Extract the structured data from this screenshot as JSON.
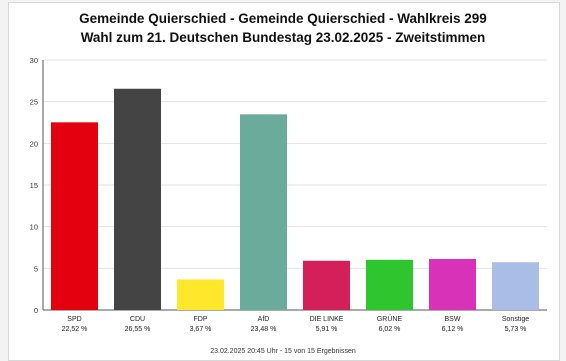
{
  "chart_data": {
    "type": "bar",
    "title": "Gemeinde Quierschied - Gemeinde Quierschied - Wahlkreis 299",
    "subtitle": "Wahl zum 21. Deutschen Bundestag 23.02.2025  - Zweitstimmen",
    "ylim": [
      0,
      30
    ],
    "yticks": [
      0,
      5,
      10,
      15,
      20,
      25,
      30
    ],
    "grid": true,
    "bars": [
      {
        "name": "SPD",
        "value": 22.52,
        "label": "22,52 %",
        "color": "#e3000f"
      },
      {
        "name": "CDU",
        "value": 26.55,
        "label": "26,55 %",
        "color": "#444444"
      },
      {
        "name": "FDP",
        "value": 3.67,
        "label": "3,67 %",
        "color": "#ffe82b"
      },
      {
        "name": "AfD",
        "value": 23.48,
        "label": "23,48 %",
        "color": "#6aab9c"
      },
      {
        "name": "DIE LINKE",
        "value": 5.91,
        "label": "5,91 %",
        "color": "#d4205a"
      },
      {
        "name": "GRÜNE",
        "value": 6.02,
        "label": "6,02 %",
        "color": "#2ec52e"
      },
      {
        "name": "BSW",
        "value": 6.12,
        "label": "6,12 %",
        "color": "#d833b8"
      },
      {
        "name": "Sonstige",
        "value": 5.73,
        "label": "5,73 %",
        "color": "#a9bde6"
      }
    ]
  },
  "footer": "23.02.2025 20:45 Uhr - 15 von 15 Ergebnissen"
}
